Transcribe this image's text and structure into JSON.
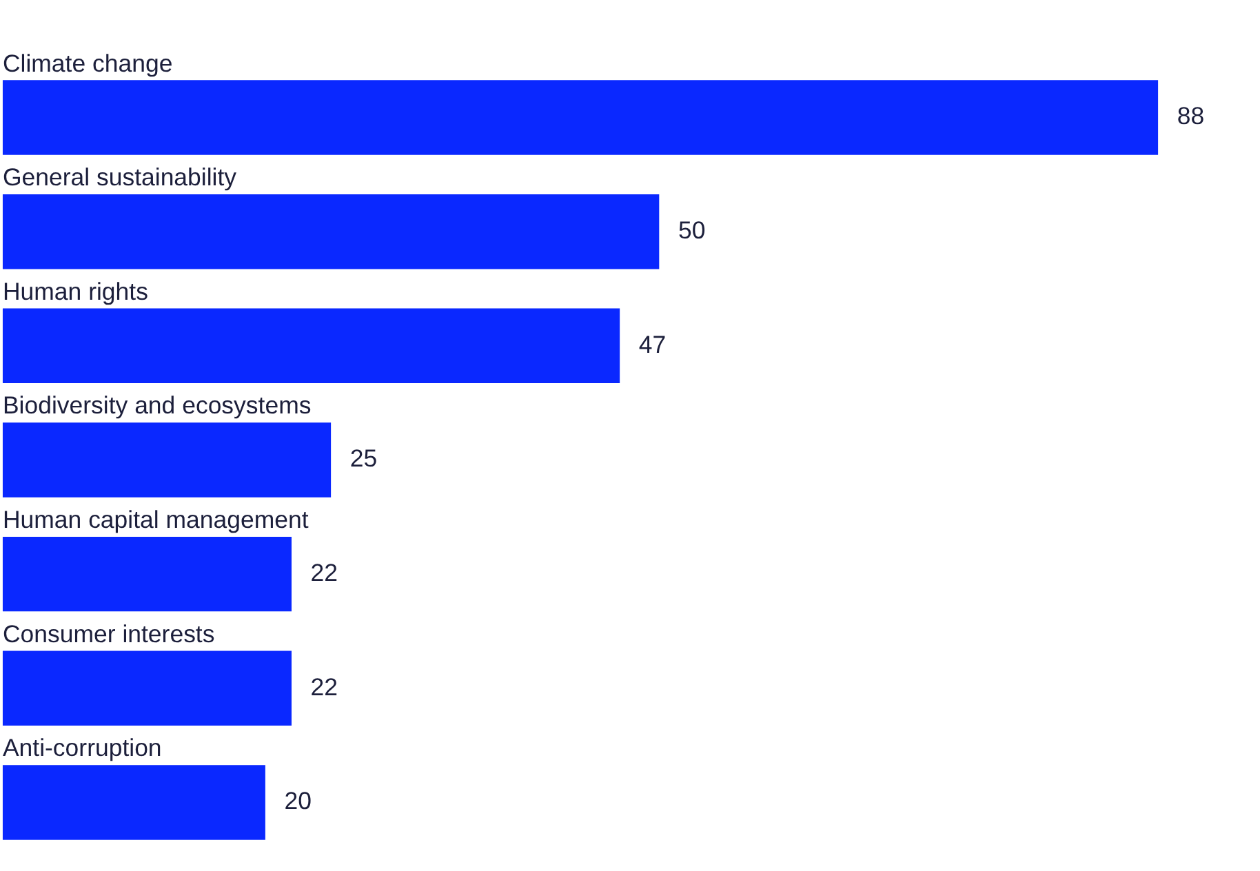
{
  "chart_data": {
    "type": "bar",
    "orientation": "horizontal",
    "categories": [
      "Climate change",
      "General sustainability",
      "Human rights",
      "Biodiversity and ecosystems",
      "Human capital management",
      "Consumer interests",
      "Anti-corruption"
    ],
    "values": [
      88,
      50,
      47,
      25,
      22,
      22,
      20
    ],
    "color": "#0a28ff",
    "data_labels": true,
    "tick_labels": "y"
  }
}
